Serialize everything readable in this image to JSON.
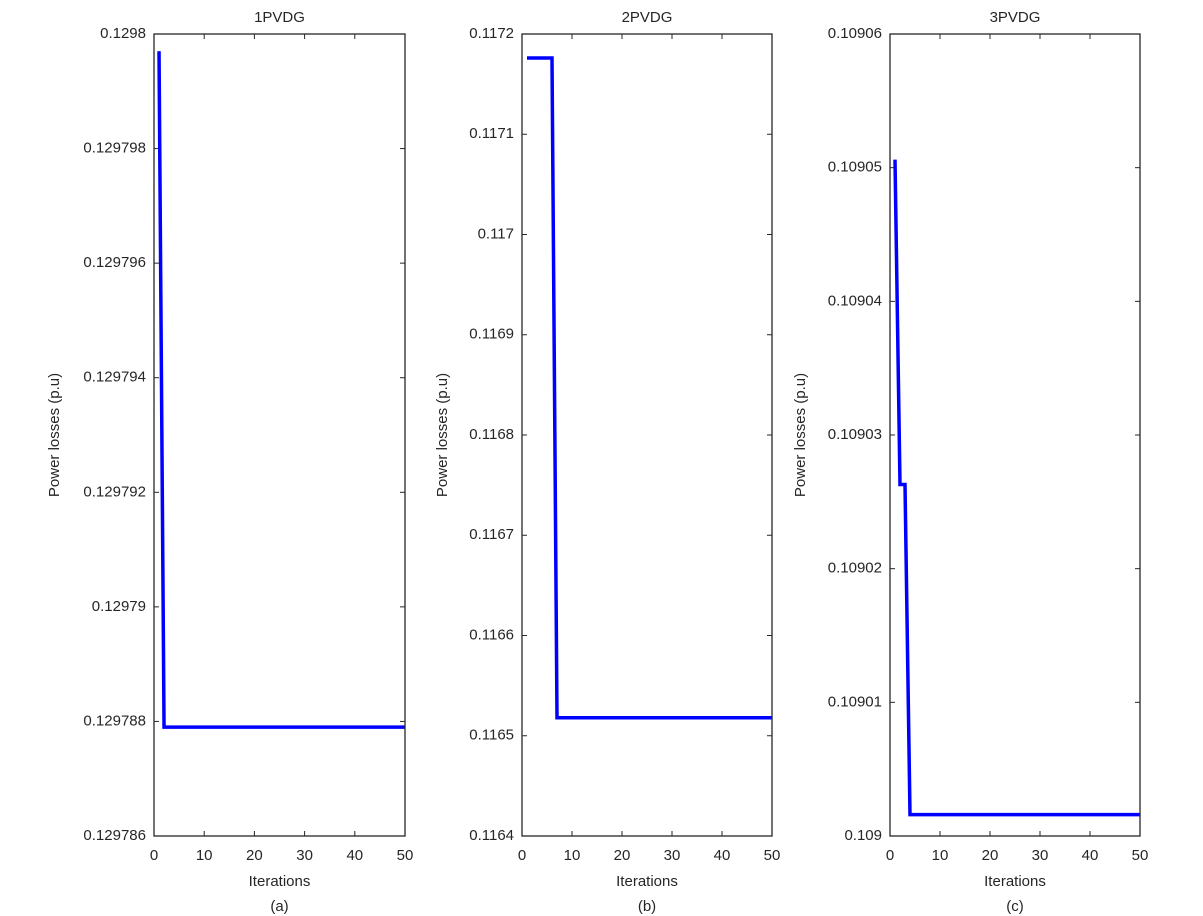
{
  "chart_data": [
    {
      "type": "line",
      "title": "1PVDG",
      "xlabel": "Iterations",
      "ylabel": "Power losses (p.u)",
      "caption": "(a)",
      "xlim": [
        0,
        50
      ],
      "xticks": [
        0,
        10,
        20,
        30,
        40,
        50
      ],
      "ylim": [
        0.129786,
        0.1298
      ],
      "yticks": [
        0.129786,
        0.129788,
        0.12979,
        0.129792,
        0.129794,
        0.129796,
        0.129798,
        0.1298
      ],
      "series": [
        {
          "color": "#0000ff",
          "x": [
            1,
            2,
            50
          ],
          "values": [
            0.1297997,
            0.1297879,
            0.1297879
          ]
        }
      ]
    },
    {
      "type": "line",
      "title": "2PVDG",
      "xlabel": "Iterations",
      "ylabel": "Power losses (p.u)",
      "caption": "(b)",
      "xlim": [
        0,
        50
      ],
      "xticks": [
        0,
        10,
        20,
        30,
        40,
        50
      ],
      "ylim": [
        0.1164,
        0.1172
      ],
      "yticks": [
        0.1164,
        0.1165,
        0.1166,
        0.1167,
        0.1168,
        0.1169,
        0.117,
        0.1171,
        0.1172
      ],
      "series": [
        {
          "color": "#0000ff",
          "x": [
            1,
            6,
            7,
            50
          ],
          "values": [
            0.117176,
            0.117176,
            0.116518,
            0.116518
          ]
        }
      ]
    },
    {
      "type": "line",
      "title": "3PVDG",
      "xlabel": "Iterations",
      "ylabel": "Power losses (p.u)",
      "caption": "(c)",
      "xlim": [
        0,
        50
      ],
      "xticks": [
        0,
        10,
        20,
        30,
        40,
        50
      ],
      "ylim": [
        0.109,
        0.10906
      ],
      "yticks": [
        0.109,
        0.10901,
        0.10902,
        0.10903,
        0.10904,
        0.10905,
        0.10906
      ],
      "series": [
        {
          "color": "#0000ff",
          "x": [
            1,
            2,
            3,
            4,
            50
          ],
          "values": [
            0.1090506,
            0.1090263,
            0.1090263,
            0.1090016,
            0.1090016
          ]
        }
      ]
    }
  ]
}
